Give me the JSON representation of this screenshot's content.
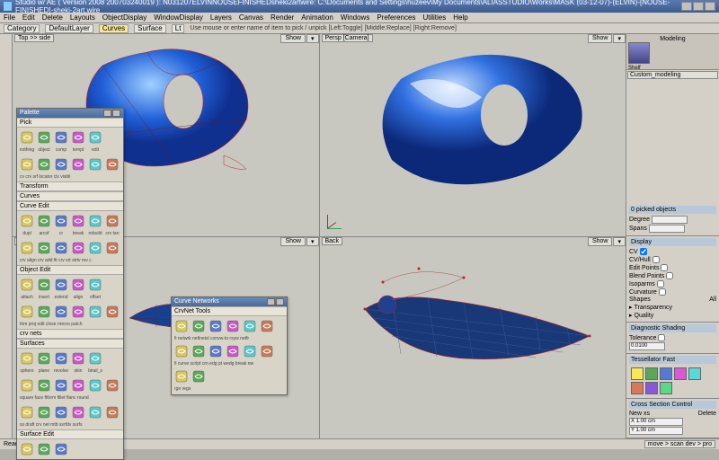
{
  "app": {
    "title": "Studio w/ AE ( Version 2008   200703240019 ): N031207ELVINNOUSEFINISHEDsheki2artwire: C:\\Documents and Settings\\huzeev\\My Documents\\ALIASSTUDIO\\Works\\MASK (03-12-07)-(ELVIN)-[NOUSE-FINISHED]-sheki-2art.wire"
  },
  "menus": [
    "File",
    "Edit",
    "Delete",
    "Layouts",
    "ObjectDisplay",
    "WindowDisplay",
    "Layers",
    "Canvas",
    "Render",
    "Animation",
    "Windows",
    "Preferences",
    "Utilities",
    "Help"
  ],
  "toolbar": {
    "category": "Category",
    "layer": "DefaultLayer",
    "tabs": [
      "Curves",
      "Surface",
      "Lt"
    ],
    "active_tab": "Curves",
    "hint": "Use mouse or enter name of item to pick / unpick [Left:Toggle] [Middle:Replace] [Right:Remove]"
  },
  "viewports": {
    "tl": {
      "label": "Top >> side",
      "btn": "Show"
    },
    "tr": {
      "label": "Persp [Camera]",
      "btn": "Show"
    },
    "bl": {
      "label": "Lt",
      "btn": "Show"
    },
    "br": {
      "label": "Back",
      "btn": "Show"
    }
  },
  "palette": {
    "title": "Palette",
    "sections": {
      "pick": {
        "title": "Pick",
        "labels": [
          "nothing",
          "object",
          "comp",
          "templ",
          "edit"
        ],
        "sub": "cv   crv srf locator cls visibl"
      },
      "transform": {
        "title": "Transform"
      },
      "curves": {
        "title": "Curves"
      },
      "curve_edit": {
        "title": "Curve Edit",
        "labels": [
          "dupl",
          "arcof",
          "cr",
          "break",
          "rebuild",
          "crv tan"
        ],
        "sub": "crv align crv add fit crv srt strtv rev c"
      },
      "object_edit": {
        "title": "Object Edit",
        "labels": [
          "attach",
          "insert",
          "extend",
          "align",
          "offset"
        ],
        "sub": "trim proj edit close nrevrs patch"
      },
      "crv_nets": {
        "title": "crv nets"
      },
      "surfaces": {
        "title": "Surfaces",
        "labels": [
          "sphere",
          "plane",
          "revolve",
          "skin",
          "birail_s"
        ],
        "sub1": "square face ftform fillet flanc round",
        "sub2": "ss draft crv net mtb ssrfdv surfs"
      },
      "surface_edit": {
        "title": "Surface Edit"
      }
    }
  },
  "curvenet": {
    "title": "Curve Networks",
    "section": "CrvNet Tools",
    "labels": "fi netwrk nefinetsl convw-to rsyw netfr",
    "sub": "fi curve scrlpt crn edg pt wedg break nw",
    "extra": "rgn regs"
  },
  "shelf": {
    "label": "Modeling",
    "sublabel": "Shelf",
    "tab": "Custom_modeling"
  },
  "right": {
    "picked": {
      "title": "0 picked objects",
      "degree": "Degree",
      "spans": "Spans"
    },
    "display": {
      "title": "Display",
      "items": [
        "CV",
        "CV/Hull",
        "Edit Points",
        "Blend Points",
        "Isoparms",
        "Curvature",
        "Shapes"
      ],
      "all": "All",
      "transparency": "Transparency",
      "quality": "Quality"
    },
    "diag": {
      "title": "Diagnostic Shading",
      "tol": "Tolerance",
      "tolval": "0.0100"
    },
    "tess": {
      "title": "Tessellator",
      "fast": "Fast"
    },
    "xsec": {
      "title": "Cross Section Control",
      "newxs": "New xs",
      "delete": "Delete",
      "x": "X 1.00 cm",
      "y": "Y 1.00 cm"
    }
  },
  "status": {
    "ready": "Ready",
    "dropdown": "move > scan dev > pro"
  },
  "colors": {
    "surface": "#2060d8",
    "surface_hl": "#80b0ff",
    "wireframe": "#c02020",
    "grid": "#203060",
    "palette_icons": [
      "#d8c858",
      "#58a858",
      "#5878c8",
      "#c858c8",
      "#58c8c8",
      "#c87858"
    ],
    "swatches": [
      "#f8e858",
      "#58a858",
      "#5878d8",
      "#d858d8",
      "#58d8d8",
      "#d87858",
      "#8858d8",
      "#58d888"
    ]
  }
}
